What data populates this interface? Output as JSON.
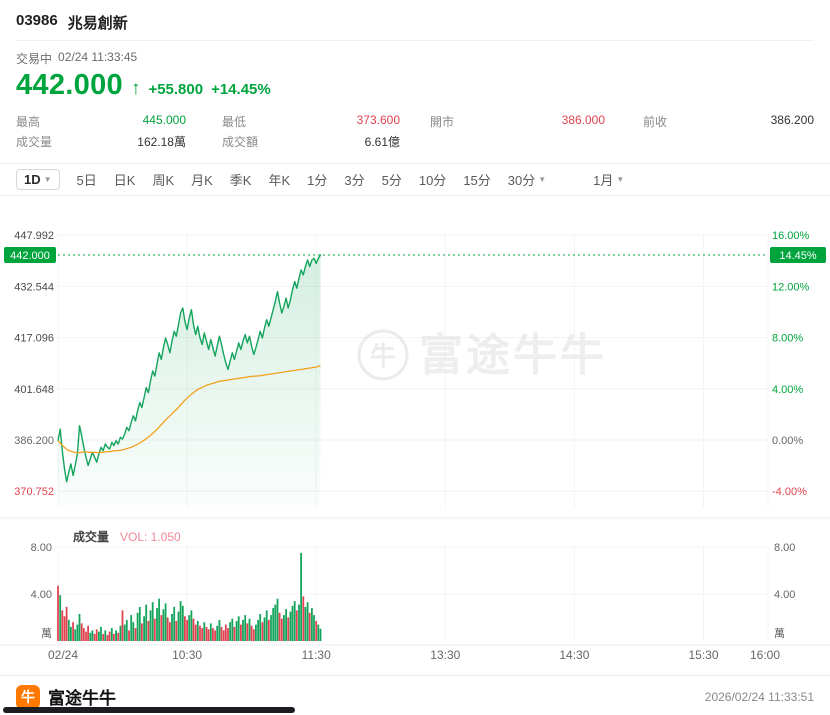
{
  "colors": {
    "green": "#00a43d",
    "red": "#e0434f",
    "chart_green": "#14a45c",
    "orange_line": "#f0a11e",
    "vol_pink": "#f2879a",
    "brand_orange": "#ff7800"
  },
  "header": {
    "stock_code": "03986",
    "stock_name": "兆易創新",
    "status": "交易中",
    "status_time": "02/24 11:33:45",
    "price": "442.000",
    "change_arrow": "↑",
    "change_value": "+55.800",
    "change_pct": "+14.45%",
    "stats": [
      {
        "label": "最高",
        "value": "445.000",
        "color": "green"
      },
      {
        "label": "最低",
        "value": "373.600",
        "color": "red"
      },
      {
        "label": "開市",
        "value": "386.000",
        "color": "red"
      },
      {
        "label": "前收",
        "value": "386.200",
        "color": "dark"
      },
      {
        "label": "成交量",
        "value": "162.18萬",
        "color": "dark"
      },
      {
        "label": "成交額",
        "value": "6.61億",
        "color": "dark"
      }
    ]
  },
  "toolbar": {
    "tabs": [
      {
        "label": "1D",
        "selected": true,
        "caret": true
      },
      {
        "label": "5日"
      },
      {
        "label": "日K"
      },
      {
        "label": "周K"
      },
      {
        "label": "月K"
      },
      {
        "label": "季K"
      },
      {
        "label": "年K"
      },
      {
        "label": "1分"
      },
      {
        "label": "3分"
      },
      {
        "label": "5分"
      },
      {
        "label": "10分"
      },
      {
        "label": "15分"
      },
      {
        "label": "30分",
        "caret": true
      },
      {
        "label": "1月",
        "caret": true,
        "gap_before": true
      }
    ]
  },
  "chart_data": {
    "type": "line",
    "title": "03986 兆易創新 1D 分時圖",
    "watermark": "富途牛牛",
    "prev_close": 386.2,
    "current_price": 442.0,
    "current_pct": "14.45%",
    "x_axis": {
      "ticks": [
        "02/24",
        "10:30",
        "11:30",
        "13:30",
        "14:30",
        "15:30",
        "16:00"
      ],
      "tick_minutes": [
        0,
        60,
        120,
        180,
        240,
        300,
        330
      ],
      "session_minutes": 330
    },
    "y_axis_left": {
      "labels": [
        "447.992",
        "442.000",
        "432.544",
        "417.096",
        "401.648",
        "386.200",
        "370.752"
      ],
      "values": [
        447.992,
        442.0,
        432.544,
        417.096,
        401.648,
        386.2,
        370.752
      ]
    },
    "y_axis_right": {
      "labels": [
        "16.00%",
        "14.45%",
        "12.00%",
        "8.00%",
        "4.00%",
        "0.00%",
        "-4.00%"
      ]
    },
    "volume_header": {
      "label": "成交量",
      "vol_text": "VOL: 1.050"
    },
    "volume_axis": {
      "labels": [
        "8.00",
        "4.00"
      ],
      "values": [
        8,
        4
      ],
      "unit": "萬"
    },
    "price_series": [
      386.0,
      389.5,
      383.0,
      377.5,
      373.6,
      376.5,
      379.0,
      375.5,
      378.5,
      382.0,
      390.5,
      387.5,
      384.0,
      381.0,
      378.5,
      380.5,
      382.5,
      381.0,
      379.5,
      382.0,
      384.0,
      383.0,
      385.0,
      384.0,
      383.5,
      385.5,
      384.5,
      386.0,
      385.0,
      387.0,
      386.5,
      388.0,
      390.0,
      389.0,
      391.5,
      393.5,
      392.0,
      395.0,
      397.5,
      396.0,
      399.0,
      402.0,
      400.5,
      404.0,
      407.0,
      405.5,
      409.0,
      412.5,
      410.5,
      414.0,
      417.0,
      415.0,
      412.5,
      416.0,
      419.0,
      417.5,
      421.0,
      424.5,
      426.0,
      422.0,
      419.5,
      423.0,
      425.5,
      421.0,
      418.0,
      420.5,
      417.0,
      415.0,
      418.5,
      416.0,
      413.5,
      416.5,
      414.0,
      411.5,
      414.5,
      417.5,
      415.0,
      412.0,
      409.5,
      407.5,
      410.0,
      412.5,
      410.5,
      413.0,
      415.5,
      413.5,
      416.0,
      418.0,
      415.5,
      417.5,
      414.5,
      412.0,
      414.0,
      416.5,
      419.0,
      417.0,
      420.0,
      422.5,
      420.5,
      423.0,
      425.5,
      428.0,
      431.0,
      427.5,
      424.5,
      426.5,
      429.0,
      426.0,
      428.5,
      431.5,
      434.0,
      432.0,
      435.0,
      437.5,
      436.0,
      438.5,
      440.5,
      438.5,
      440.5,
      441.0,
      439.5,
      441.0,
      442.0
    ],
    "avg_series": [
      386.0,
      385.2,
      384.6,
      384.0,
      383.4,
      383.0,
      382.8,
      382.6,
      382.4,
      382.3,
      382.4,
      382.5,
      382.6,
      382.6,
      382.5,
      382.5,
      382.5,
      382.5,
      382.4,
      382.4,
      382.5,
      382.5,
      382.6,
      382.7,
      382.7,
      382.8,
      382.9,
      383.0,
      383.0,
      383.1,
      383.2,
      383.4,
      383.6,
      383.8,
      384.0,
      384.3,
      384.6,
      384.9,
      385.3,
      385.7,
      386.1,
      386.6,
      387.1,
      387.6,
      388.2,
      388.8,
      389.4,
      390.1,
      390.8,
      391.5,
      392.2,
      392.9,
      393.5,
      394.1,
      394.8,
      395.4,
      396.1,
      396.8,
      397.5,
      398.2,
      398.8,
      399.4,
      400.0,
      400.5,
      401.0,
      401.4,
      401.8,
      402.1,
      402.4,
      402.7,
      402.9,
      403.1,
      403.3,
      403.5,
      403.7,
      403.9,
      404.0,
      404.1,
      404.2,
      404.3,
      404.4,
      404.5,
      404.6,
      404.7,
      404.8,
      404.9,
      405.0,
      405.1,
      405.2,
      405.3,
      405.4,
      405.4,
      405.5,
      405.5,
      405.6,
      405.7,
      405.8,
      405.9,
      406.0,
      406.1,
      406.2,
      406.3,
      406.4,
      406.5,
      406.6,
      406.7,
      406.8,
      406.9,
      407.0,
      407.1,
      407.2,
      407.3,
      407.4,
      407.5,
      407.6,
      407.7,
      407.8,
      407.9,
      408.0,
      408.1,
      408.2,
      408.4,
      408.6
    ],
    "volume_series": [
      4.7,
      3.9,
      2.6,
      2.1,
      2.9,
      1.8,
      1.2,
      1.6,
      1.0,
      1.4,
      2.3,
      1.5,
      1.1,
      0.8,
      1.3,
      0.7,
      0.9,
      0.6,
      1.0,
      0.8,
      1.2,
      0.6,
      0.9,
      0.5,
      0.8,
      1.1,
      0.6,
      0.9,
      0.7,
      1.3,
      2.6,
      1.4,
      1.8,
      0.9,
      2.2,
      1.6,
      1.1,
      2.4,
      2.9,
      1.5,
      2.1,
      3.1,
      1.7,
      2.6,
      3.3,
      1.9,
      2.8,
      3.6,
      2.2,
      2.7,
      3.2,
      2.0,
      1.6,
      2.3,
      2.9,
      1.7,
      2.5,
      3.4,
      3.0,
      2.1,
      1.8,
      2.2,
      2.6,
      1.9,
      1.4,
      1.7,
      1.3,
      1.1,
      1.6,
      1.2,
      1.0,
      1.5,
      1.1,
      0.9,
      1.3,
      1.8,
      1.2,
      0.9,
      1.4,
      1.1,
      1.6,
      1.9,
      1.2,
      1.7,
      2.1,
      1.4,
      1.8,
      2.2,
      1.5,
      1.9,
      1.3,
      1.0,
      1.4,
      1.8,
      2.3,
      1.6,
      2.0,
      2.6,
      1.8,
      2.2,
      2.8,
      3.1,
      3.6,
      2.4,
      1.9,
      2.2,
      2.7,
      2.0,
      2.5,
      3.0,
      3.4,
      2.6,
      3.1,
      7.5,
      3.8,
      2.9,
      3.3,
      2.4,
      2.8,
      2.2,
      1.7,
      1.4,
      1.05
    ]
  },
  "footer": {
    "brand": "富途牛牛",
    "logo_glyph": "牛",
    "timestamp": "2026/02/24 11:33:51"
  }
}
